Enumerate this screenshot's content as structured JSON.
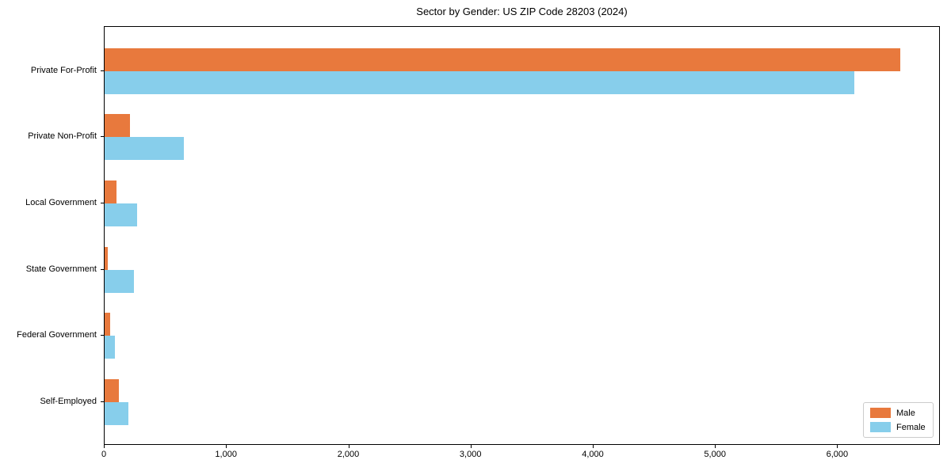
{
  "chart_data": {
    "type": "bar",
    "orientation": "horizontal",
    "title": "Sector by Gender: US ZIP Code 28203 (2024)",
    "categories": [
      "Private For-Profit",
      "Private Non-Profit",
      "Local Government",
      "State Government",
      "Federal Government",
      "Self-Employed"
    ],
    "series": [
      {
        "name": "Male",
        "color": "#e8793d",
        "values": [
          6512,
          210,
          98,
          28,
          45,
          118
        ]
      },
      {
        "name": "Female",
        "color": "#87ceeb",
        "values": [
          6130,
          650,
          266,
          240,
          84,
          194
        ]
      }
    ],
    "xlim": [
      0,
      6840
    ],
    "xticks": [
      0,
      1000,
      2000,
      3000,
      4000,
      5000,
      6000
    ],
    "xtick_labels": [
      "0",
      "1,000",
      "2,000",
      "3,000",
      "4,000",
      "5,000",
      "6,000"
    ],
    "xlabel": "",
    "ylabel": "",
    "grid": false,
    "legend_position": "lower right",
    "spine_color": "#000000",
    "legend_border_color": "#cccccc",
    "background_color": "#ffffff"
  }
}
